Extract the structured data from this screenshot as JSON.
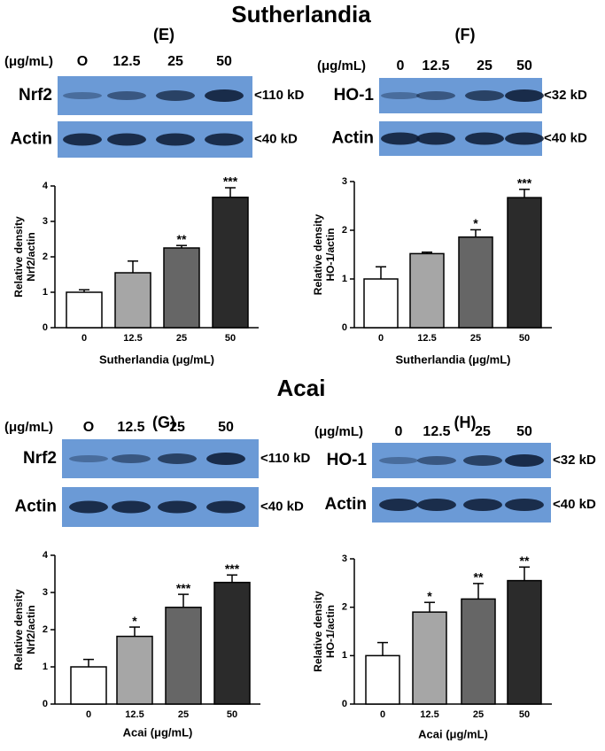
{
  "section_titles": [
    "Sutherlandia",
    "Acai"
  ],
  "chart_data": [
    {
      "type": "bar",
      "panel_label": "(E)",
      "blot": {
        "unit_label": "(μg/mL)",
        "lanes": [
          "O",
          "12.5",
          "25",
          "50"
        ],
        "rows": [
          {
            "protein": "Nrf2",
            "size": "<110 kD"
          },
          {
            "protein": "Actin",
            "size": "<40 kD"
          }
        ]
      },
      "ylabel": [
        "Relative density",
        "Nrf2/actin"
      ],
      "xlabel": "Sutherlandia (μg/mL)",
      "categories": [
        "0",
        "12.5",
        "25",
        "50"
      ],
      "values": [
        1.0,
        1.55,
        2.25,
        3.68
      ],
      "errors": [
        0.07,
        0.33,
        0.07,
        0.27
      ],
      "significance": [
        null,
        null,
        "**",
        "***"
      ],
      "colors": [
        "#ffffff",
        "#a6a6a6",
        "#666666",
        "#2b2b2b"
      ],
      "ylim": [
        0,
        4
      ],
      "yticks": [
        0,
        1,
        2,
        3,
        4
      ]
    },
    {
      "type": "bar",
      "panel_label": "(F)",
      "blot": {
        "unit_label": "(μg/mL)",
        "lanes": [
          "0",
          "12.5",
          "25",
          "50"
        ],
        "rows": [
          {
            "protein": "HO-1",
            "size": "<32 kD"
          },
          {
            "protein": "Actin",
            "size": "<40 kD"
          }
        ]
      },
      "ylabel": [
        "Relative density",
        "HO-1/actin"
      ],
      "xlabel": "Sutherlandia (μg/mL)",
      "categories": [
        "0",
        "12.5",
        "25",
        "50"
      ],
      "values": [
        1.0,
        1.52,
        1.86,
        2.67
      ],
      "errors": [
        0.25,
        0.03,
        0.15,
        0.17
      ],
      "significance": [
        null,
        null,
        "*",
        "***"
      ],
      "colors": [
        "#ffffff",
        "#a6a6a6",
        "#666666",
        "#2b2b2b"
      ],
      "ylim": [
        0,
        3
      ],
      "yticks": [
        0,
        1,
        2,
        3
      ]
    },
    {
      "type": "bar",
      "panel_label": "(G)",
      "blot": {
        "unit_label": "(μg/mL)",
        "lanes": [
          "O",
          "12.5",
          "25",
          "50"
        ],
        "rows": [
          {
            "protein": "Nrf2",
            "size": "<110 kD"
          },
          {
            "protein": "Actin",
            "size": "<40 kD"
          }
        ]
      },
      "ylabel": [
        "Relative density",
        "Nrf2/actin"
      ],
      "xlabel": "Acai (μg/mL)",
      "categories": [
        "0",
        "12.5",
        "25",
        "50"
      ],
      "values": [
        1.0,
        1.82,
        2.6,
        3.27
      ],
      "errors": [
        0.2,
        0.25,
        0.35,
        0.2
      ],
      "significance": [
        null,
        "*",
        "***",
        "***"
      ],
      "colors": [
        "#ffffff",
        "#a6a6a6",
        "#666666",
        "#2b2b2b"
      ],
      "ylim": [
        0,
        4
      ],
      "yticks": [
        0,
        1,
        2,
        3,
        4
      ]
    },
    {
      "type": "bar",
      "panel_label": "(H)",
      "blot": {
        "unit_label": "(μg/mL)",
        "lanes": [
          "0",
          "12.5",
          "25",
          "50"
        ],
        "rows": [
          {
            "protein": "HO-1",
            "size": "<32 kD"
          },
          {
            "protein": "Actin",
            "size": "<40 kD"
          }
        ]
      },
      "ylabel": [
        "Relative density",
        "HO-1/actin"
      ],
      "xlabel": "Acai (μg/mL)",
      "categories": [
        "0",
        "12.5",
        "25",
        "50"
      ],
      "values": [
        1.0,
        1.9,
        2.17,
        2.55
      ],
      "errors": [
        0.27,
        0.2,
        0.32,
        0.28
      ],
      "significance": [
        null,
        "*",
        "**",
        "**"
      ],
      "colors": [
        "#ffffff",
        "#a6a6a6",
        "#666666",
        "#2b2b2b"
      ],
      "ylim": [
        0,
        3
      ],
      "yticks": [
        0,
        1,
        2,
        3
      ]
    }
  ]
}
